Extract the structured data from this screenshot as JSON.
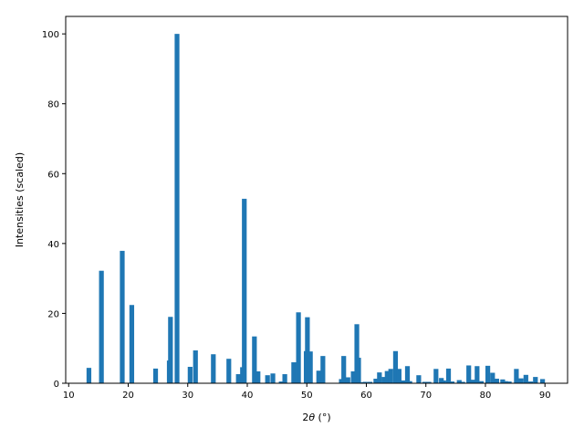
{
  "chart_data": {
    "type": "bar",
    "title": "",
    "xlabel_prefix": "2",
    "xlabel_theta": "θ",
    "xlabel_unit": " (°)",
    "ylabel": "Intensities (scaled)",
    "xlim": [
      9.5,
      93.8
    ],
    "ylim": [
      0,
      105
    ],
    "bar_width": 0.8,
    "color": "#1f77b4",
    "grid": false,
    "xticks": [
      10,
      20,
      30,
      40,
      50,
      60,
      70,
      80,
      90
    ],
    "xtick_labels": [
      "10",
      "20",
      "30",
      "40",
      "50",
      "60",
      "70",
      "80",
      "90"
    ],
    "yticks": [
      0,
      20,
      40,
      60,
      80,
      100
    ],
    "ytick_labels": [
      "0",
      "20",
      "40",
      "60",
      "80",
      "100"
    ],
    "x": [
      13.4,
      15.5,
      19.0,
      20.6,
      24.6,
      26.9,
      27.1,
      28.2,
      30.4,
      31.3,
      34.3,
      36.9,
      38.5,
      39.2,
      39.5,
      41.2,
      41.8,
      43.4,
      44.3,
      45.7,
      46.3,
      47.8,
      48.6,
      49.9,
      50.1,
      50.6,
      52.0,
      52.7,
      55.8,
      56.2,
      56.9,
      57.8,
      58.4,
      58.7,
      59.3,
      59.8,
      60.6,
      61.6,
      62.2,
      63.0,
      63.5,
      64.1,
      64.9,
      65.5,
      66.2,
      66.9,
      67.3,
      68.8,
      69.8,
      70.5,
      71.7,
      72.6,
      73.0,
      73.8,
      74.4,
      75.6,
      76.2,
      77.2,
      77.9,
      78.6,
      79.3,
      80.4,
      81.2,
      81.9,
      82.9,
      83.4,
      84.0,
      85.2,
      86.0,
      86.8,
      87.6,
      88.4,
      89.6
    ],
    "values": [
      4.4,
      32.2,
      37.9,
      22.4,
      4.2,
      6.5,
      19.0,
      100.0,
      4.7,
      9.4,
      8.3,
      7.0,
      2.6,
      4.6,
      52.8,
      13.4,
      3.4,
      2.3,
      2.8,
      0.5,
      2.6,
      6.0,
      20.3,
      9.2,
      18.9,
      9.1,
      3.6,
      7.8,
      1.2,
      7.8,
      1.7,
      3.4,
      16.9,
      7.3,
      0.3,
      0.4,
      0.4,
      1.3,
      3.1,
      1.8,
      3.5,
      4.1,
      9.2,
      4.1,
      0.8,
      4.9,
      0.6,
      2.3,
      0.4,
      0.4,
      4.1,
      1.5,
      0.8,
      4.2,
      0.5,
      0.9,
      0.4,
      5.1,
      1.0,
      4.9,
      0.6,
      5.0,
      3.0,
      1.3,
      1.1,
      0.6,
      0.5,
      4.1,
      1.4,
      2.4,
      0.5,
      1.8,
      1.2
    ]
  }
}
